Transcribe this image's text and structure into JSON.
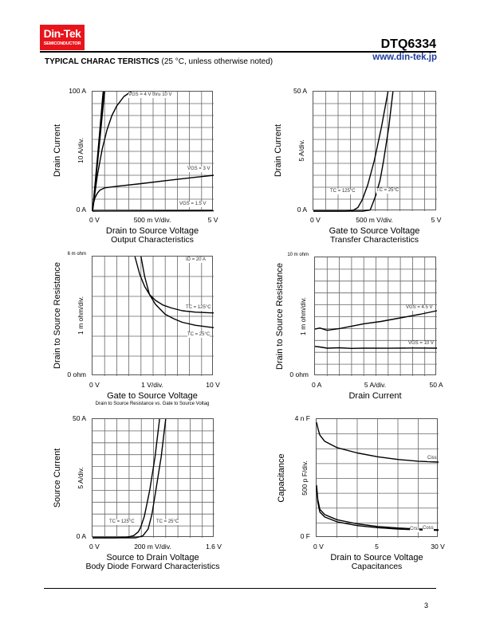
{
  "header": {
    "logo_line1": "Din-Tek",
    "logo_line2": "SEMICONDUCTOR",
    "part_number": "DTQ6334",
    "heading_bold": "TYPICAL CHARAC TERISTICS",
    "heading_note": "(25 °C, unless otherwise noted)",
    "url": "www.din-tek.jp",
    "brand_color": "#e8141c",
    "url_color": "#1f3d9c"
  },
  "footer": {
    "page_number": "3"
  },
  "chart_data": [
    {
      "type": "line",
      "title": "Output Characteristics",
      "xlabel": "Drain to Source Voltage",
      "ylabel": "Drain Current",
      "xlim": [
        0,
        5
      ],
      "ylim": [
        0,
        100
      ],
      "xdivs": 10,
      "ydivs": 10,
      "grid": true,
      "x_ticks": {
        "left": "0 V",
        "mid": "500 m V/div.",
        "right": "5 V"
      },
      "y_ticks": {
        "top": "100 A",
        "bottom": "0 A",
        "div": "10 A/div."
      },
      "series": [
        {
          "name": "VGS = 4 V thru 10 V",
          "points": [
            [
              0,
              0
            ],
            [
              0.1,
              20
            ],
            [
              0.2,
              42
            ],
            [
              0.3,
              64
            ],
            [
              0.4,
              86
            ],
            [
              0.46,
              100
            ]
          ]
        },
        {
          "name": "",
          "points": [
            [
              0,
              0
            ],
            [
              0.1,
              21
            ],
            [
              0.2,
              44
            ],
            [
              0.3,
              67
            ],
            [
              0.42,
              96
            ],
            [
              0.44,
              100
            ]
          ]
        },
        {
          "name": "",
          "points": [
            [
              0,
              0
            ],
            [
              0.1,
              19
            ],
            [
              0.2,
              39
            ],
            [
              0.3,
              59
            ],
            [
              0.4,
              80
            ],
            [
              0.5,
              100
            ]
          ]
        },
        {
          "name": "",
          "points": [
            [
              0,
              0
            ],
            [
              0.2,
              30
            ],
            [
              0.4,
              52
            ],
            [
              0.6,
              68
            ],
            [
              0.8,
              80
            ],
            [
              1.0,
              88
            ],
            [
              1.3,
              96
            ],
            [
              1.6,
              100
            ]
          ]
        },
        {
          "name": "VGS = 3 V",
          "points": [
            [
              0,
              0
            ],
            [
              0.05,
              7
            ],
            [
              0.1,
              11
            ],
            [
              0.2,
              15
            ],
            [
              0.3,
              17.5
            ],
            [
              0.5,
              19.5
            ],
            [
              1,
              20.8
            ],
            [
              2,
              23
            ],
            [
              3,
              25.5
            ],
            [
              4,
              27.8
            ],
            [
              5,
              30
            ]
          ]
        },
        {
          "name": "VGS = 1.5 V",
          "points": [
            [
              0,
              0
            ],
            [
              5,
              0.3
            ]
          ]
        }
      ]
    },
    {
      "type": "line",
      "title": "Transfer Characteristics",
      "xlabel": "Gate to Source Voltage",
      "ylabel": "Drain Current",
      "xlim": [
        0,
        5
      ],
      "ylim": [
        0,
        50
      ],
      "xdivs": 10,
      "ydivs": 10,
      "grid": true,
      "x_ticks": {
        "left": "0 V",
        "mid": "500 m V/div.",
        "right": "5 V"
      },
      "y_ticks": {
        "top": "50 A",
        "bottom": "0 A",
        "div": "5 A/div."
      },
      "series": [
        {
          "name": "TC = 125°C",
          "points": [
            [
              0,
              0
            ],
            [
              1.3,
              0
            ],
            [
              1.6,
              0.3
            ],
            [
              1.8,
              1.5
            ],
            [
              1.98,
              4.8
            ],
            [
              2.2,
              11
            ],
            [
              2.46,
              21
            ],
            [
              2.75,
              35
            ],
            [
              3.02,
              50
            ]
          ]
        },
        {
          "name": "TC = 25°C",
          "points": [
            [
              0,
              0
            ],
            [
              2.0,
              0
            ],
            [
              2.3,
              0.5
            ],
            [
              2.52,
              6.4
            ],
            [
              2.7,
              13
            ],
            [
              2.84,
              21
            ],
            [
              3.05,
              35
            ],
            [
              3.22,
              50
            ]
          ]
        }
      ]
    },
    {
      "type": "line",
      "title": "Drain to Source Resistance vs. Gate to Source Voltag",
      "xlabel": "Gate to Source Voltage",
      "ylabel": "Drain to Source Resistance",
      "xlim": [
        0,
        10
      ],
      "ylim": [
        0,
        6
      ],
      "xdivs": 10,
      "ydivs": 6,
      "grid": true,
      "x_ticks": {
        "left": "0 V",
        "mid": "1 V/div.",
        "right": "10 V"
      },
      "y_ticks": {
        "top": "6 m ohm",
        "bottom": "0 ohm",
        "div": "1 m ohm/div."
      },
      "annotation": "ID = 20 A",
      "series": [
        {
          "name": "TC = 125°C",
          "points": [
            [
              3.5,
              6
            ],
            [
              3.9,
              5.1
            ],
            [
              4.3,
              4.5
            ],
            [
              4.7,
              4.1
            ],
            [
              5.2,
              3.8
            ],
            [
              5.8,
              3.57
            ],
            [
              6.5,
              3.42
            ],
            [
              7.4,
              3.28
            ],
            [
              8.5,
              3.21
            ],
            [
              10,
              3.17
            ]
          ]
        },
        {
          "name": "TC = 25°C",
          "points": [
            [
              4.0,
              6
            ],
            [
              4.3,
              5.0
            ],
            [
              4.7,
              4.1
            ],
            [
              5.2,
              3.6
            ],
            [
              6.0,
              3.1
            ],
            [
              6.7,
              2.88
            ],
            [
              7.4,
              2.7
            ],
            [
              8.5,
              2.55
            ],
            [
              10,
              2.43
            ]
          ]
        }
      ]
    },
    {
      "type": "line",
      "title": "",
      "xlabel": "Drain Current",
      "ylabel": "Drain to Source Resistance",
      "xlim": [
        0,
        50
      ],
      "ylim": [
        0,
        10
      ],
      "xdivs": 10,
      "ydivs": 10,
      "grid": true,
      "x_ticks": {
        "left": "0 A",
        "mid": "5 A/div.",
        "right": "50 A"
      },
      "y_ticks": {
        "top": "10 m ohm",
        "bottom": "0 ohm",
        "div": "1 m ohm/div."
      },
      "series": [
        {
          "name": "VGS = 4.5 V",
          "points": [
            [
              0,
              3.95
            ],
            [
              2,
              4.05
            ],
            [
              5,
              3.85
            ],
            [
              10,
              4.0
            ],
            [
              15,
              4.2
            ],
            [
              20,
              4.4
            ],
            [
              27,
              4.6
            ],
            [
              35,
              4.9
            ],
            [
              43,
              5.2
            ],
            [
              50,
              5.5
            ]
          ]
        },
        {
          "name": "VGS = 10 V",
          "points": [
            [
              0,
              2.5
            ],
            [
              2,
              2.45
            ],
            [
              5,
              2.35
            ],
            [
              10,
              2.38
            ],
            [
              15,
              2.33
            ],
            [
              20,
              2.35
            ],
            [
              30,
              2.34
            ],
            [
              40,
              2.36
            ],
            [
              50,
              2.35
            ]
          ]
        }
      ]
    },
    {
      "type": "line",
      "title": "Body Diode Forward Characteristics",
      "xlabel": "Source to Drain Voltage",
      "ylabel": "Source Current",
      "xlim": [
        0,
        1.6
      ],
      "ylim": [
        0,
        50
      ],
      "xdivs": 10,
      "ydivs": 10,
      "grid": true,
      "x_ticks": {
        "left": "0 V",
        "mid": "200 m V/div.",
        "right": "1.6 V"
      },
      "y_ticks": {
        "top": "50 A",
        "bottom": "0 A",
        "div": "5 A/div."
      },
      "series": [
        {
          "name": "TC = 125°C",
          "points": [
            [
              0,
              0
            ],
            [
              0.3,
              0
            ],
            [
              0.45,
              0.2
            ],
            [
              0.54,
              0.9
            ],
            [
              0.6,
              2.5
            ],
            [
              0.63,
              4.2
            ],
            [
              0.68,
              9
            ],
            [
              0.75,
              19.9
            ],
            [
              0.82,
              34
            ],
            [
              0.88,
              50
            ]
          ]
        },
        {
          "name": "TC = 25°C",
          "points": [
            [
              0,
              0
            ],
            [
              0.57,
              0
            ],
            [
              0.66,
              0.8
            ],
            [
              0.73,
              3.7
            ],
            [
              0.78,
              10
            ],
            [
              0.83,
              19.9
            ],
            [
              0.9,
              34
            ],
            [
              0.96,
              50
            ]
          ]
        }
      ]
    },
    {
      "type": "line",
      "title": "Capacitances",
      "xlabel": "Drain to Source Voltage",
      "ylabel": "Capacitance",
      "xlim": [
        0,
        30
      ],
      "ylim": [
        0,
        4000
      ],
      "xdivs": 6,
      "ydivs": 8,
      "grid": true,
      "x_ticks": {
        "left": "0 V",
        "mid": "5",
        "right": "30 V"
      },
      "y_ticks": {
        "top": "4 n F",
        "bottom": "0 F",
        "div": "500 p F/div."
      },
      "series": [
        {
          "name": "Ciss",
          "points": [
            [
              0,
              3890
            ],
            [
              0.4,
              3650
            ],
            [
              0.8,
              3460
            ],
            [
              2,
              3250
            ],
            [
              5,
              3040
            ],
            [
              10,
              2860
            ],
            [
              15,
              2730
            ],
            [
              20,
              2640
            ],
            [
              25,
              2580
            ],
            [
              30,
              2550
            ]
          ]
        },
        {
          "name": "Coss",
          "points": [
            [
              0,
              1770
            ],
            [
              0.3,
              1300
            ],
            [
              0.8,
              960
            ],
            [
              2,
              780
            ],
            [
              5,
              610
            ],
            [
              10,
              470
            ],
            [
              15,
              380
            ],
            [
              20,
              330
            ],
            [
              25,
              295
            ],
            [
              30,
              270
            ]
          ]
        },
        {
          "name": "Crss",
          "points": [
            [
              0,
              1680
            ],
            [
              0.3,
              1200
            ],
            [
              0.8,
              870
            ],
            [
              2,
              700
            ],
            [
              5,
              540
            ],
            [
              10,
              410
            ],
            [
              15,
              340
            ],
            [
              20,
              295
            ],
            [
              25,
              265
            ],
            [
              30,
              250
            ]
          ]
        }
      ]
    }
  ]
}
